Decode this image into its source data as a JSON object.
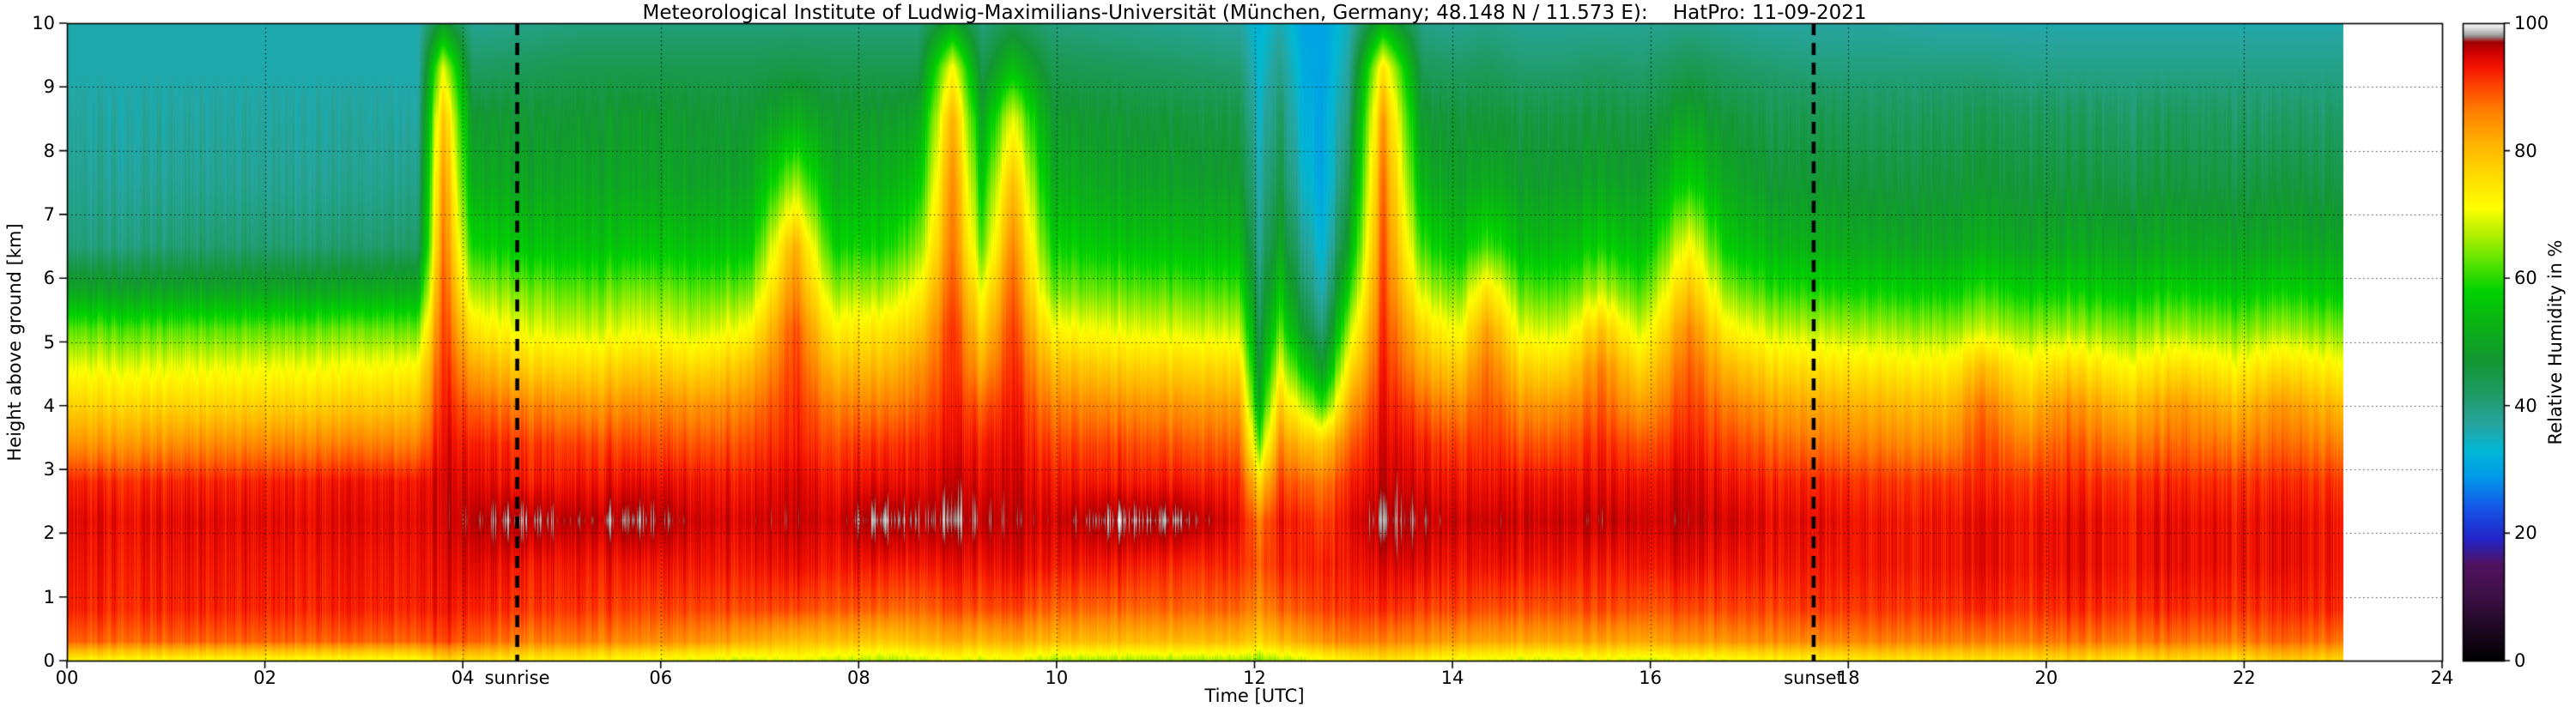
{
  "chart": {
    "title": "Meteorological Institute of Ludwig-Maximilians-Universität (München, Germany; 48.148 N / 11.573 E):    HatPro: 11-09-2021",
    "xlabel": "Time [UTC]",
    "ylabel": "Height above ground [km]",
    "x_tick_labels": [
      "00",
      "02",
      "04",
      "06",
      "08",
      "10",
      "12",
      "14",
      "16",
      "18",
      "20",
      "22",
      "24"
    ],
    "y_tick_labels": [
      "0",
      "1",
      "2",
      "3",
      "4",
      "5",
      "6",
      "7",
      "8",
      "9",
      "10"
    ],
    "colorbar": {
      "label": "Relative Humidity in %",
      "tick_labels": [
        "0",
        "20",
        "40",
        "60",
        "80",
        "100"
      ]
    },
    "annotations": [
      {
        "label": "sunrise",
        "time_utc": 4.55
      },
      {
        "label": "sunset",
        "time_utc": 17.65
      }
    ]
  },
  "chart_data": {
    "type": "heatmap",
    "title": "Meteorological Institute of Ludwig-Maximilians-Universität (München, Germany; 48.148 N / 11.573 E):    HatPro: 11-09-2021",
    "xlabel": "Time [UTC]",
    "ylabel": "Height above ground [km]",
    "zlabel": "Relative Humidity in %",
    "xlim": [
      0,
      24
    ],
    "ylim": [
      0,
      10
    ],
    "zlim": [
      0,
      100
    ],
    "grid": {
      "x_major_hours": 2,
      "y_major_km": 1,
      "style": "dotted"
    },
    "data_end_hour": 23.0,
    "events": {
      "sunrise_utc": 4.55,
      "sunset_utc": 17.65
    },
    "heights_km": [
      0.0,
      0.3,
      0.8,
      1.5,
      2.2,
      2.8,
      3.4,
      4.0,
      4.6,
      5.2,
      5.8,
      6.5,
      7.5,
      8.5,
      9.3,
      10.0
    ],
    "time_keyframes_utc": [
      0.0,
      1.5,
      3.0,
      3.55,
      3.8,
      4.1,
      4.6,
      5.2,
      5.8,
      6.4,
      6.9,
      7.35,
      7.75,
      8.25,
      8.6,
      8.95,
      9.25,
      9.55,
      9.95,
      10.6,
      11.3,
      11.85,
      12.05,
      12.25,
      12.5,
      12.7,
      12.95,
      13.3,
      13.7,
      14.05,
      14.35,
      14.7,
      15.1,
      15.5,
      15.9,
      16.4,
      16.8,
      17.25,
      17.7,
      18.3,
      19.0,
      19.35,
      19.8,
      20.2,
      20.8,
      21.4,
      21.9,
      22.35,
      23.0
    ],
    "rh_profiles_percent": [
      [
        72,
        88,
        92,
        93,
        94,
        92,
        84,
        77,
        70,
        62,
        50,
        40,
        38,
        37,
        36,
        36
      ],
      [
        71,
        88,
        92,
        93,
        94,
        92,
        85,
        77,
        70,
        62,
        50,
        41,
        38,
        37,
        36,
        36
      ],
      [
        70,
        88,
        92,
        93,
        94,
        93,
        86,
        78,
        71,
        63,
        51,
        41,
        38,
        37,
        36,
        36
      ],
      [
        70,
        88,
        92,
        93,
        94,
        93,
        86,
        79,
        72,
        63,
        52,
        42,
        39,
        37,
        36,
        36
      ],
      [
        76,
        90,
        93,
        94,
        95,
        95,
        94,
        93,
        92,
        91,
        90,
        88,
        85,
        80,
        70,
        48
      ],
      [
        74,
        88,
        92,
        94,
        96,
        94,
        92,
        88,
        82,
        74,
        66,
        58,
        51,
        47,
        42,
        38
      ],
      [
        73,
        86,
        91,
        93,
        97.5,
        93,
        91,
        86,
        78,
        70,
        64,
        56,
        50,
        47,
        43,
        39
      ],
      [
        72,
        86,
        91,
        93,
        96,
        93,
        90,
        84,
        76,
        68,
        62,
        55,
        50,
        47,
        44,
        40
      ],
      [
        70,
        85,
        90,
        93,
        97.5,
        94,
        90,
        85,
        78,
        70,
        64,
        56,
        50,
        48,
        44,
        40
      ],
      [
        69,
        84,
        90,
        93,
        95,
        93,
        89,
        84,
        76,
        68,
        62,
        55,
        49,
        47,
        44,
        40
      ],
      [
        68,
        82,
        90,
        93,
        95,
        93,
        90,
        86,
        80,
        72,
        64,
        56,
        50,
        47,
        44,
        40
      ],
      [
        70,
        80,
        90,
        94,
        96,
        95,
        93,
        92,
        91,
        90,
        86,
        82,
        66,
        52,
        45,
        40
      ],
      [
        68,
        80,
        89,
        93,
        95,
        93,
        90,
        86,
        80,
        73,
        66,
        58,
        52,
        48,
        44,
        40
      ],
      [
        66,
        78,
        88,
        93,
        98,
        94,
        91,
        86,
        80,
        74,
        66,
        58,
        52,
        48,
        44,
        40
      ],
      [
        68,
        80,
        88,
        93,
        97,
        94,
        92,
        88,
        84,
        78,
        72,
        64,
        56,
        50,
        44,
        40
      ],
      [
        70,
        82,
        90,
        94,
        98,
        96,
        94,
        93,
        92,
        92,
        90,
        88,
        86,
        82,
        72,
        50
      ],
      [
        68,
        80,
        89,
        93,
        96,
        94,
        92,
        88,
        82,
        76,
        70,
        62,
        56,
        50,
        44,
        40
      ],
      [
        70,
        82,
        90,
        94,
        96,
        95,
        94,
        93,
        92,
        91,
        89,
        86,
        80,
        70,
        55,
        44
      ],
      [
        66,
        80,
        88,
        93,
        95,
        93,
        90,
        86,
        80,
        72,
        64,
        58,
        52,
        48,
        44,
        40
      ],
      [
        66,
        80,
        88,
        93,
        98,
        93,
        90,
        85,
        78,
        70,
        63,
        56,
        50,
        47,
        43,
        39
      ],
      [
        66,
        80,
        88,
        92,
        97.5,
        93,
        89,
        84,
        77,
        69,
        62,
        55,
        49,
        46,
        42,
        38
      ],
      [
        66,
        80,
        88,
        92,
        94,
        92,
        88,
        83,
        76,
        68,
        61,
        54,
        48,
        45,
        41,
        37
      ],
      [
        64,
        76,
        84,
        88,
        86,
        76,
        62,
        52,
        47,
        44,
        41,
        38,
        36,
        34,
        33,
        32
      ],
      [
        66,
        80,
        88,
        92,
        93,
        90,
        85,
        78,
        70,
        62,
        56,
        50,
        45,
        42,
        39,
        36
      ],
      [
        68,
        82,
        89,
        92,
        92,
        88,
        80,
        68,
        56,
        47,
        42,
        38,
        34,
        32,
        31,
        30
      ],
      [
        70,
        84,
        90,
        92,
        90,
        86,
        78,
        60,
        48,
        40,
        35,
        32,
        30,
        30,
        30,
        30
      ],
      [
        72,
        86,
        91,
        93,
        94,
        92,
        88,
        82,
        74,
        66,
        58,
        50,
        44,
        40,
        37,
        35
      ],
      [
        75,
        86,
        92,
        95,
        98,
        96,
        95,
        94,
        93,
        92,
        91,
        90,
        88,
        84,
        75,
        52
      ],
      [
        72,
        84,
        90,
        94,
        96,
        94,
        92,
        88,
        82,
        76,
        68,
        60,
        52,
        47,
        43,
        39
      ],
      [
        70,
        83,
        90,
        93,
        95,
        93,
        90,
        85,
        78,
        70,
        63,
        55,
        49,
        46,
        42,
        38
      ],
      [
        70,
        83,
        90,
        94,
        96,
        94,
        92,
        90,
        88,
        84,
        76,
        62,
        52,
        47,
        43,
        39
      ],
      [
        68,
        82,
        89,
        93,
        95,
        93,
        89,
        84,
        77,
        69,
        62,
        54,
        48,
        45,
        41,
        38
      ],
      [
        68,
        82,
        89,
        93,
        95,
        93,
        89,
        84,
        76,
        68,
        61,
        54,
        48,
        45,
        41,
        38
      ],
      [
        70,
        83,
        90,
        93,
        96,
        94,
        92,
        89,
        86,
        79,
        68,
        58,
        50,
        46,
        42,
        38
      ],
      [
        68,
        82,
        89,
        93,
        95,
        93,
        89,
        83,
        76,
        68,
        61,
        54,
        48,
        45,
        41,
        38
      ],
      [
        70,
        84,
        90,
        94,
        96,
        95,
        93,
        91,
        89,
        86,
        80,
        72,
        58,
        50,
        44,
        39
      ],
      [
        70,
        84,
        90,
        93,
        95,
        93,
        90,
        86,
        80,
        72,
        64,
        56,
        50,
        46,
        42,
        38
      ],
      [
        72,
        85,
        90,
        93,
        94,
        92,
        88,
        83,
        76,
        68,
        60,
        53,
        47,
        44,
        41,
        37
      ],
      [
        72,
        85,
        91,
        93,
        94,
        92,
        87,
        82,
        75,
        67,
        59,
        52,
        47,
        44,
        40,
        37
      ],
      [
        74,
        86,
        91,
        93,
        93,
        91,
        86,
        81,
        74,
        66,
        58,
        51,
        46,
        43,
        40,
        37
      ],
      [
        74,
        86,
        91,
        93,
        93,
        91,
        85,
        80,
        73,
        65,
        57,
        50,
        46,
        43,
        40,
        36
      ],
      [
        74,
        86,
        92,
        94,
        94,
        92,
        90,
        87,
        80,
        68,
        60,
        52,
        47,
        44,
        40,
        36
      ],
      [
        74,
        86,
        91,
        93,
        93,
        91,
        86,
        80,
        73,
        65,
        57,
        50,
        46,
        43,
        39,
        36
      ],
      [
        76,
        87,
        92,
        94,
        94,
        92,
        89,
        85,
        77,
        66,
        58,
        51,
        46,
        43,
        39,
        36
      ],
      [
        74,
        86,
        91,
        93,
        93,
        91,
        86,
        80,
        72,
        64,
        56,
        50,
        45,
        42,
        39,
        36
      ],
      [
        76,
        87,
        92,
        94,
        94,
        92,
        88,
        84,
        76,
        66,
        58,
        51,
        46,
        43,
        39,
        36
      ],
      [
        74,
        86,
        91,
        93,
        93,
        91,
        86,
        80,
        72,
        64,
        56,
        50,
        45,
        42,
        39,
        36
      ],
      [
        78,
        88,
        92,
        94,
        94,
        92,
        88,
        84,
        76,
        66,
        58,
        51,
        46,
        42,
        39,
        36
      ],
      [
        76,
        87,
        92,
        93,
        93,
        91,
        86,
        80,
        72,
        64,
        56,
        50,
        45,
        42,
        39,
        36
      ]
    ],
    "colormap_stops": [
      [
        0,
        "#000000"
      ],
      [
        4,
        "#16061a"
      ],
      [
        10,
        "#3c1044"
      ],
      [
        15,
        "#50125f"
      ],
      [
        19,
        "#2424c8"
      ],
      [
        24,
        "#1456e8"
      ],
      [
        29,
        "#009ce8"
      ],
      [
        33,
        "#00b8d4"
      ],
      [
        37,
        "#28a5a0"
      ],
      [
        42,
        "#1e9b64"
      ],
      [
        47,
        "#129632"
      ],
      [
        53,
        "#0ab414"
      ],
      [
        58,
        "#00d200"
      ],
      [
        63,
        "#64e600"
      ],
      [
        67,
        "#b4f000"
      ],
      [
        71,
        "#ffff00"
      ],
      [
        76,
        "#ffdc00"
      ],
      [
        81,
        "#ffb400"
      ],
      [
        86,
        "#ff8200"
      ],
      [
        90,
        "#ff4600"
      ],
      [
        93,
        "#f51400"
      ],
      [
        95.5,
        "#cd0000"
      ],
      [
        97,
        "#a00000"
      ],
      [
        98,
        "#969696"
      ],
      [
        99,
        "#d2d2d2"
      ],
      [
        100,
        "#ffffff"
      ]
    ]
  }
}
